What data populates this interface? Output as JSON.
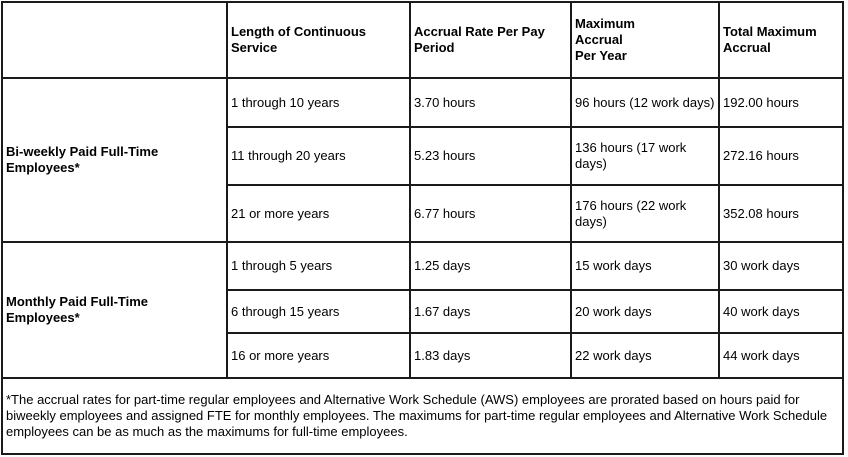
{
  "colors": {
    "border": "#1a1a1a",
    "text": "#000000",
    "background": "#ffffff"
  },
  "table": {
    "header_row": {
      "col1": "",
      "col2": "Length of Continuous\nService",
      "col3": "Accrual Rate Per Pay\nPeriod",
      "col4": "Maximum\nAccrual\nPer Year",
      "col5": "Total Maximum\nAccrual"
    },
    "groups": [
      {
        "label": "Bi-weekly Paid Full-Time\nEmployees*",
        "rows": [
          {
            "service": "1 through 10 years",
            "rate": "3.70 hours",
            "max_per_year": "96 hours (12 work days)",
            "total_max": "192.00 hours"
          },
          {
            "service": "11 through 20 years",
            "rate": "5.23 hours",
            "max_per_year": "136 hours (17 work\ndays)",
            "total_max": "272.16 hours"
          },
          {
            "service": "21 or more years",
            "rate": "6.77 hours",
            "max_per_year": "176 hours (22 work\ndays)",
            "total_max": "352.08 hours"
          }
        ]
      },
      {
        "label": "Monthly Paid Full-Time\nEmployees*",
        "rows": [
          {
            "service": "1 through 5 years",
            "rate": "1.25 days",
            "max_per_year": "15 work days",
            "total_max": "30 work days"
          },
          {
            "service": "6 through 15 years",
            "rate": "1.67 days",
            "max_per_year": "20 work days",
            "total_max": "40 work days"
          },
          {
            "service": "16 or more years",
            "rate": "1.83 days",
            "max_per_year": "22 work days",
            "total_max": "44 work days"
          }
        ]
      }
    ],
    "footnote": "*The accrual rates for part-time regular employees and Alternative Work Schedule (AWS) employees are prorated based on hours paid for\nbiweekly employees and assigned FTE for monthly employees. The maximums for part-time regular employees and Alternative Work Schedule\nemployees can be as much as the maximums for full-time employees."
  }
}
